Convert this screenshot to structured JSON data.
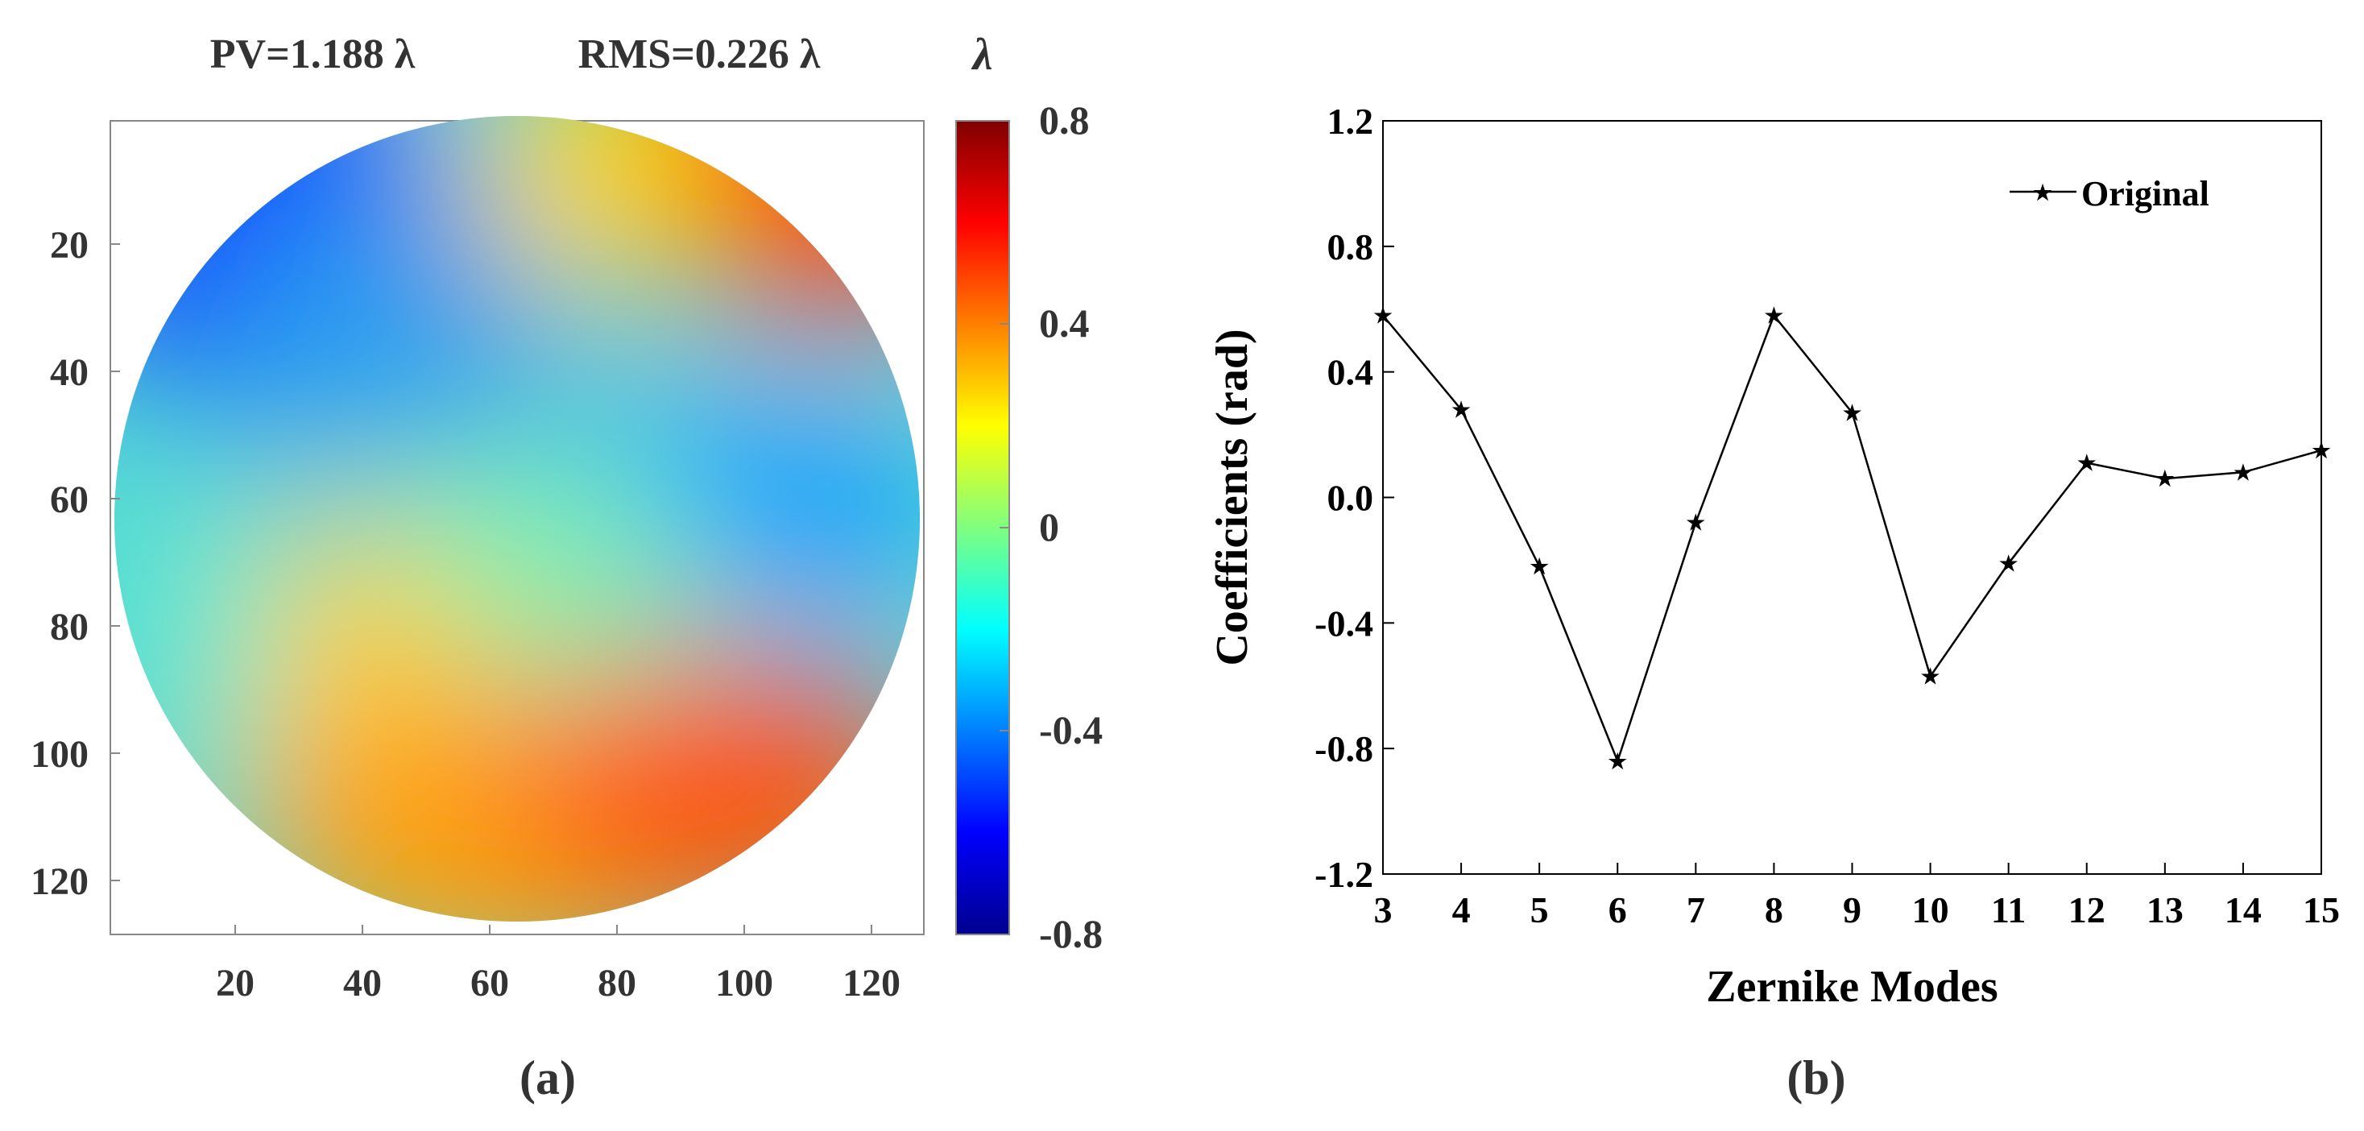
{
  "panel_a": {
    "label": "(a)",
    "title_pv": "PV=1.188 λ",
    "title_rms": "RMS=0.226 λ",
    "colorbar_unit": "λ",
    "colorbar_ticks": [
      "0.8",
      "0.4",
      "0",
      "-0.4",
      "-0.8"
    ],
    "x_ticks": [
      "20",
      "40",
      "60",
      "80",
      "100",
      "120"
    ],
    "y_ticks": [
      "20",
      "40",
      "60",
      "80",
      "100",
      "120"
    ],
    "colormap": [
      "#00008f",
      "#0000ff",
      "#00ffff",
      "#ffff00",
      "#ff0000",
      "#800000"
    ]
  },
  "panel_b": {
    "label": "(b)",
    "legend": "Original",
    "line_color": "#000000"
  },
  "chart_data": [
    {
      "type": "heatmap",
      "title": "PV=1.188 λ     RMS=0.226 λ",
      "xlabel": "",
      "ylabel": "",
      "xlim": [
        1,
        128
      ],
      "ylim": [
        128,
        1
      ],
      "colorbar": {
        "label": "λ",
        "range": [
          -0.8,
          0.8
        ],
        "ticks": [
          0.8,
          0.4,
          0,
          -0.4,
          -0.8
        ]
      },
      "pupil": "circular",
      "x_ticks": [
        20,
        40,
        60,
        80,
        100,
        120
      ],
      "y_ticks": [
        20,
        40,
        60,
        80,
        100,
        120
      ],
      "notable_regions": [
        {
          "location": "top-right edge",
          "value": 0.5
        },
        {
          "location": "bottom center",
          "value": 0.45
        },
        {
          "location": "top-left edge",
          "value": -0.6
        },
        {
          "location": "right-center",
          "value": -0.3
        }
      ]
    },
    {
      "type": "line",
      "title": "",
      "xlabel": "Zernike Modes",
      "ylabel": "Coefficients (rad)",
      "xlim": [
        3,
        15
      ],
      "ylim": [
        -1.2,
        1.2
      ],
      "x_ticks": [
        "3",
        "4",
        "5",
        "6",
        "7",
        "8",
        "9",
        "10",
        "11",
        "12",
        "13",
        "14",
        "15"
      ],
      "y_ticks": [
        "1.2",
        "0.8",
        "0.4",
        "0.0",
        "-0.4",
        "-0.8",
        "-1.2"
      ],
      "legend_position": "top-right",
      "series": [
        {
          "name": "Original",
          "marker": "star",
          "x": [
            3,
            4,
            5,
            6,
            7,
            8,
            9,
            10,
            11,
            12,
            13,
            14,
            15
          ],
          "values": [
            0.58,
            0.28,
            -0.22,
            -0.84,
            -0.08,
            0.58,
            0.27,
            -0.57,
            -0.21,
            0.11,
            0.06,
            0.08,
            0.15
          ]
        }
      ]
    }
  ]
}
